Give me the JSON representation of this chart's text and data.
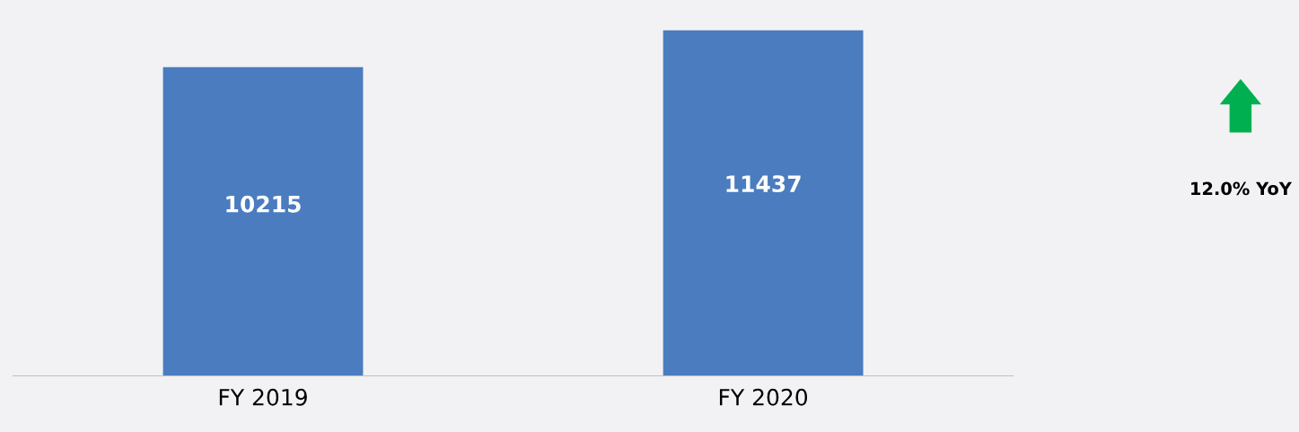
{
  "chart_data": {
    "type": "bar",
    "categories": [
      "FY 2019",
      "FY 2020"
    ],
    "values": [
      10215,
      11437
    ],
    "color": "#4a7cbf",
    "data_labels": true,
    "grid": false,
    "legend": false,
    "annotations": [
      "12.0% YoY"
    ]
  }
}
